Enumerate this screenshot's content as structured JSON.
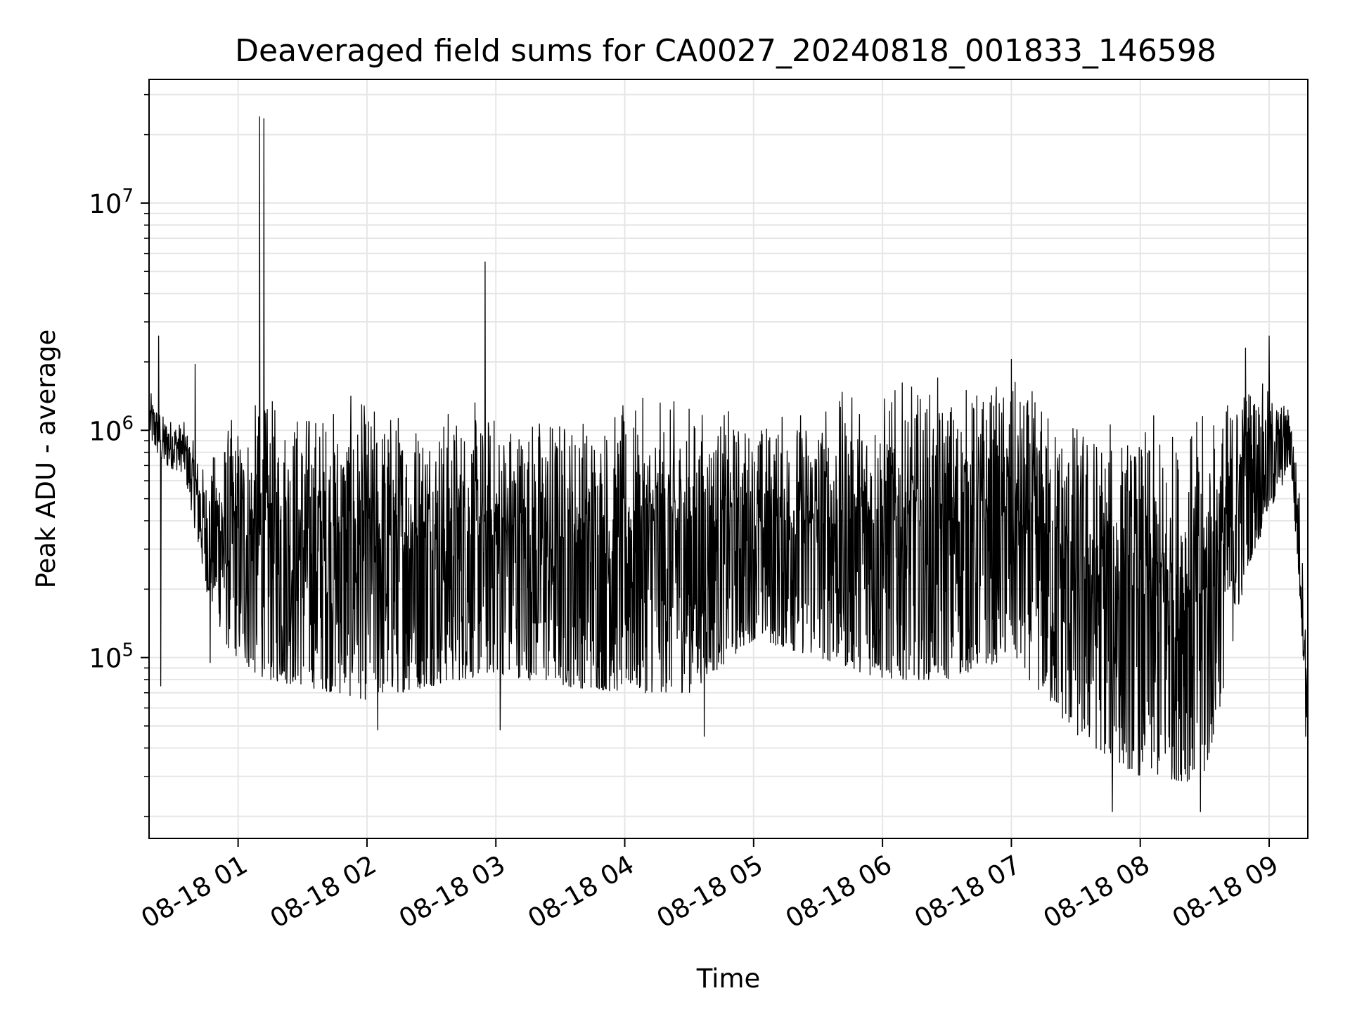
{
  "chart_data": {
    "type": "line",
    "title": "Deaveraged field sums for CA0027_20240818_001833_146598",
    "xlabel": "Time",
    "ylabel": "Peak ADU - average",
    "y_scale": "log",
    "grid": true,
    "x_range": [
      "2024-08-18 00:18:33",
      "2024-08-18 09:18"
    ],
    "ylim": [
      16000,
      35000000
    ],
    "x_ticks": [
      {
        "label": "08-18 01",
        "time": "2024-08-18 01:00"
      },
      {
        "label": "08-18 02",
        "time": "2024-08-18 02:00"
      },
      {
        "label": "08-18 03",
        "time": "2024-08-18 03:00"
      },
      {
        "label": "08-18 04",
        "time": "2024-08-18 04:00"
      },
      {
        "label": "08-18 05",
        "time": "2024-08-18 05:00"
      },
      {
        "label": "08-18 06",
        "time": "2024-08-18 06:00"
      },
      {
        "label": "08-18 07",
        "time": "2024-08-18 07:00"
      },
      {
        "label": "08-18 08",
        "time": "2024-08-18 08:00"
      },
      {
        "label": "08-18 09",
        "time": "2024-08-18 09:00"
      }
    ],
    "y_ticks": [
      {
        "label": "10",
        "exponent": "5",
        "value": 100000
      },
      {
        "label": "10",
        "exponent": "6",
        "value": 1000000
      },
      {
        "label": "10",
        "exponent": "7",
        "value": 10000000
      }
    ],
    "series": [
      {
        "color": "#000000",
        "envelope": [
          {
            "time": "2024-08-18 00:19",
            "low": 900000,
            "high": 1500000
          },
          {
            "time": "2024-08-18 00:25",
            "low": 700000,
            "high": 1200000
          },
          {
            "time": "2024-08-18 00:35",
            "low": 650000,
            "high": 1100000
          },
          {
            "time": "2024-08-18 00:45",
            "low": 200000,
            "high": 700000
          },
          {
            "time": "2024-08-18 00:55",
            "low": 110000,
            "high": 1200000
          },
          {
            "time": "2024-08-18 01:10",
            "low": 80000,
            "high": 1500000
          },
          {
            "time": "2024-08-18 01:30",
            "low": 75000,
            "high": 1500000
          },
          {
            "time": "2024-08-18 02:00",
            "low": 65000,
            "high": 1500000
          },
          {
            "time": "2024-08-18 02:30",
            "low": 75000,
            "high": 1500000
          },
          {
            "time": "2024-08-18 03:00",
            "low": 85000,
            "high": 1400000
          },
          {
            "time": "2024-08-18 03:30",
            "low": 75000,
            "high": 1400000
          },
          {
            "time": "2024-08-18 04:00",
            "low": 70000,
            "high": 1400000
          },
          {
            "time": "2024-08-18 04:30",
            "low": 70000,
            "high": 1500000
          },
          {
            "time": "2024-08-18 05:00",
            "low": 120000,
            "high": 1200000
          },
          {
            "time": "2024-08-18 05:30",
            "low": 100000,
            "high": 1500000
          },
          {
            "time": "2024-08-18 06:00",
            "low": 80000,
            "high": 1700000
          },
          {
            "time": "2024-08-18 06:30",
            "low": 80000,
            "high": 1750000
          },
          {
            "time": "2024-08-18 07:00",
            "low": 100000,
            "high": 1800000
          },
          {
            "time": "2024-08-18 07:30",
            "low": 45000,
            "high": 1300000
          },
          {
            "time": "2024-08-18 08:00",
            "low": 30000,
            "high": 1150000
          },
          {
            "time": "2024-08-18 08:30",
            "low": 28000,
            "high": 1300000
          },
          {
            "time": "2024-08-18 08:50",
            "low": 250000,
            "high": 1900000
          },
          {
            "time": "2024-08-18 09:10",
            "low": 700000,
            "high": 1300000
          },
          {
            "time": "2024-08-18 09:14",
            "low": 200000,
            "high": 600000
          },
          {
            "time": "2024-08-18 09:18",
            "low": 45000,
            "high": 90000
          }
        ],
        "spikes": [
          {
            "time": "2024-08-18 01:10",
            "value": 24000000
          },
          {
            "time": "2024-08-18 01:12",
            "value": 23500000
          },
          {
            "time": "2024-08-18 02:55",
            "value": 5500000
          },
          {
            "time": "2024-08-18 00:23",
            "value": 2600000
          },
          {
            "time": "2024-08-18 09:00",
            "value": 2600000
          },
          {
            "time": "2024-08-18 08:49",
            "value": 2300000
          },
          {
            "time": "2024-08-18 07:00",
            "value": 2050000
          },
          {
            "time": "2024-08-18 00:40",
            "value": 1950000
          }
        ],
        "dips": [
          {
            "time": "2024-08-18 00:24",
            "value": 75000
          },
          {
            "time": "2024-08-18 00:47",
            "value": 95000
          },
          {
            "time": "2024-08-18 02:05",
            "value": 48000
          },
          {
            "time": "2024-08-18 03:02",
            "value": 48000
          },
          {
            "time": "2024-08-18 04:37",
            "value": 45000
          },
          {
            "time": "2024-08-18 07:47",
            "value": 21000
          },
          {
            "time": "2024-08-18 08:28",
            "value": 21000
          },
          {
            "time": "2024-08-18 09:17",
            "value": 45000
          }
        ]
      }
    ]
  }
}
